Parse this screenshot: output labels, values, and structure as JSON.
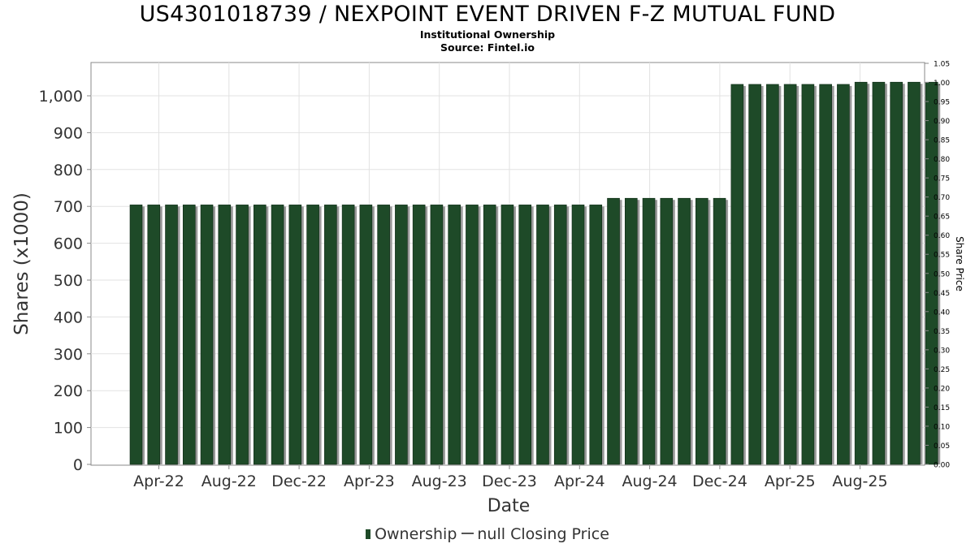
{
  "chart_data": {
    "type": "bar",
    "title": "US4301018739 / NEXPOINT EVENT DRIVEN F-Z MUTUAL FUND",
    "subtitle_lines": [
      "Institutional Ownership",
      "Source: Fintel.io"
    ],
    "xlabel": "Date",
    "ylabel": "Shares (x1000)",
    "y2label": "Share Price",
    "ylim": [
      0,
      1100
    ],
    "y_ticks": [
      0,
      100,
      200,
      300,
      400,
      500,
      600,
      700,
      800,
      900,
      1000
    ],
    "y_tick_labels": [
      "0",
      "100",
      "200",
      "300",
      "400",
      "500",
      "600",
      "700",
      "800",
      "900",
      "1,000"
    ],
    "y2lim": [
      0,
      1.05
    ],
    "y2_ticks": [
      0,
      0.05,
      0.1,
      0.15,
      0.2,
      0.25,
      0.3,
      0.35,
      0.4,
      0.45,
      0.5,
      0.55,
      0.6,
      0.65,
      0.7,
      0.75,
      0.8,
      0.85,
      0.9,
      0.95,
      1.0,
      1.05
    ],
    "y2_tick_labels": [
      "0.00",
      "0.05",
      "0.10",
      "0.15",
      "0.20",
      "0.25",
      "0.30",
      "0.35",
      "0.40",
      "0.45",
      "0.50",
      "0.55",
      "0.60",
      "0.65",
      "0.70",
      "0.75",
      "0.80",
      "0.85",
      "0.90",
      "0.95",
      "1.00",
      "1.05"
    ],
    "x_tick_labels": [
      "Apr-22",
      "Aug-22",
      "Dec-22",
      "Apr-23",
      "Aug-23",
      "Dec-23",
      "Apr-24",
      "Aug-24",
      "Dec-24",
      "Apr-25",
      "Aug-25"
    ],
    "grid": true,
    "legend_position": "bottom",
    "series": [
      {
        "name": "Ownership",
        "color": "#1e4a28",
        "values": [
          704,
          704,
          704,
          704,
          704,
          704,
          704,
          704,
          704,
          704,
          704,
          704,
          704,
          704,
          704,
          704,
          704,
          704,
          704,
          704,
          704,
          704,
          704,
          704,
          704,
          704,
          704,
          722,
          722,
          722,
          722,
          722,
          722,
          722,
          1031,
          1031,
          1031,
          1031,
          1031,
          1031,
          1031,
          1037,
          1037,
          1037,
          1037,
          1037
        ]
      }
    ],
    "legend": [
      "Ownership",
      "null Closing Price"
    ]
  }
}
